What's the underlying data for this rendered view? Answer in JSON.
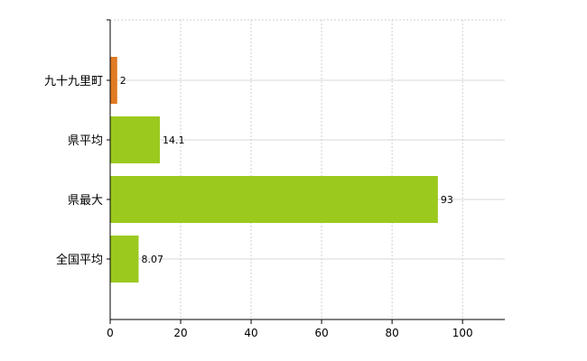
{
  "chart_data": {
    "type": "bar",
    "orientation": "horizontal",
    "title": "",
    "xlabel": "",
    "ylabel": "",
    "categories": [
      "九十九里町",
      "県平均",
      "県最大",
      "全国平均"
    ],
    "values": [
      2,
      14.1,
      93,
      8.07
    ],
    "value_labels": [
      "2",
      "14.1",
      "93",
      "8.07"
    ],
    "colors": [
      "#e07b22",
      "#9bc91e",
      "#9bc91e",
      "#9bc91e"
    ],
    "xlim": [
      0,
      112
    ],
    "xticks": [
      0,
      20,
      40,
      60,
      80,
      100
    ],
    "grid": true,
    "legend": "none"
  }
}
